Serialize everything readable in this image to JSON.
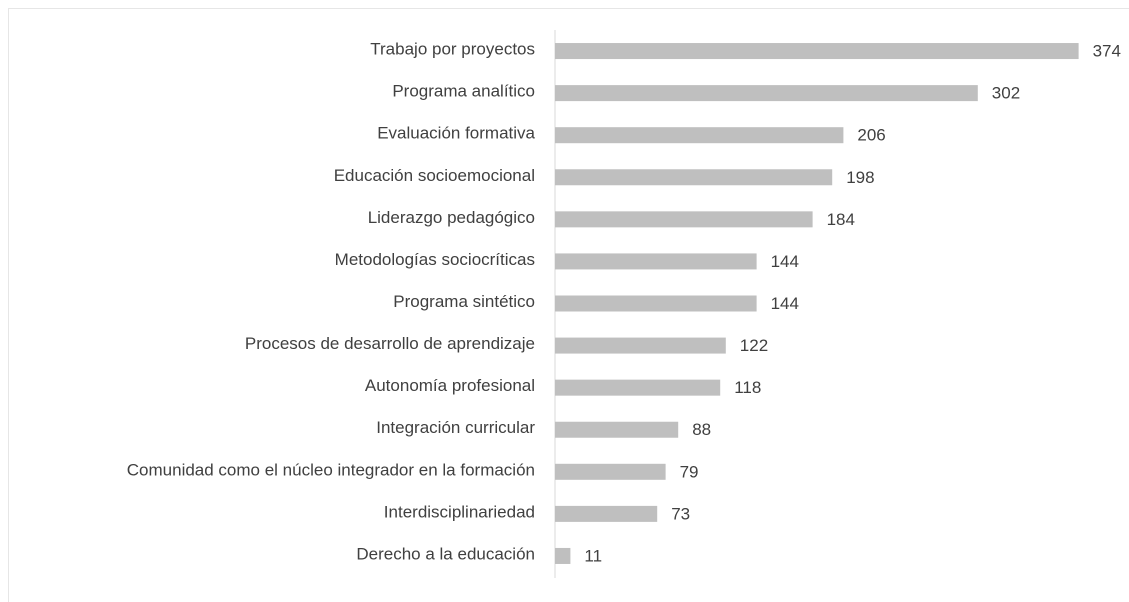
{
  "chart_data": {
    "type": "bar",
    "orientation": "horizontal",
    "categories": [
      "Trabajo por proyectos",
      "Programa analítico",
      "Evaluación formativa",
      "Educación socioemocional",
      "Liderazgo pedagógico",
      "Metodologías sociocríticas",
      "Programa sintético",
      "Procesos de desarrollo de aprendizaje",
      "Autonomía profesional",
      "Integración curricular",
      "Comunidad como el núcleo integrador en la formación",
      "Interdisciplinariedad",
      "Derecho a la educación"
    ],
    "values": [
      374,
      302,
      206,
      198,
      184,
      144,
      144,
      122,
      118,
      88,
      79,
      73,
      11
    ],
    "color": "#bfbfbf",
    "xlim": [
      0,
      410
    ]
  }
}
